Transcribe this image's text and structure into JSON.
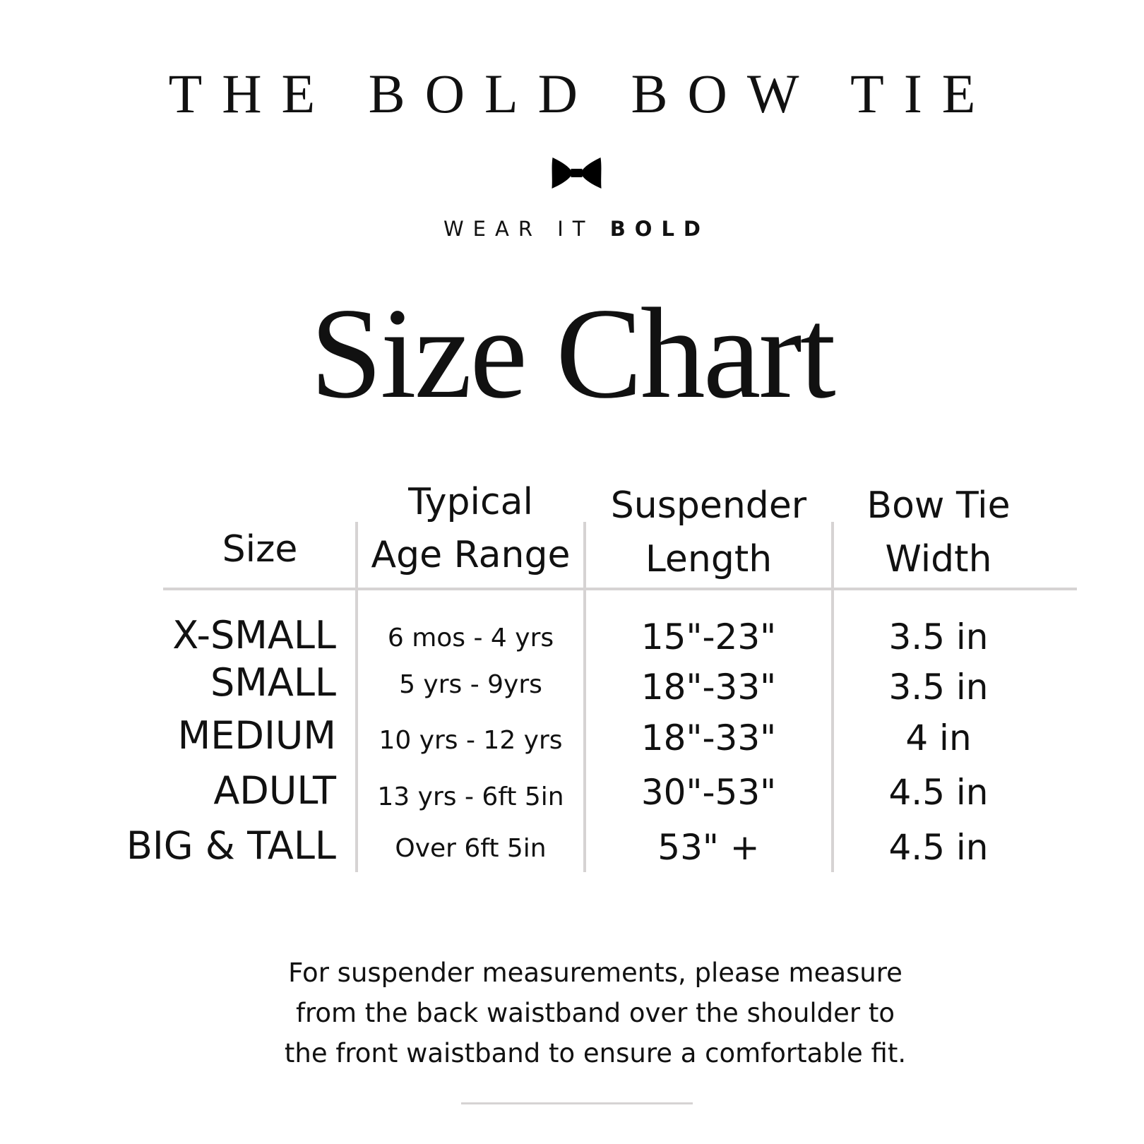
{
  "brand": {
    "name": "THE BOLD BOW TIE",
    "tagline_regular": "WEAR IT",
    "tagline_bold": "BOLD",
    "logo_icon": "bow-tie-icon"
  },
  "title": "Size Chart",
  "table": {
    "headers": [
      {
        "line1": "",
        "line2": "Size"
      },
      {
        "line1": "Typical",
        "line2": "Age Range"
      },
      {
        "line1": "Suspender",
        "line2": "Length"
      },
      {
        "line1": "Bow Tie",
        "line2": "Width"
      }
    ],
    "rows": [
      {
        "size": "X-SMALL",
        "age": "6 mos - 4 yrs",
        "suspender": "15\"-23\"",
        "bowtie": "3.5 in"
      },
      {
        "size": "SMALL",
        "age": "5 yrs - 9yrs",
        "suspender": "18\"-33\"",
        "bowtie": "3.5 in"
      },
      {
        "size": "MEDIUM",
        "age": "10 yrs - 12 yrs",
        "suspender": "18\"-33\"",
        "bowtie": "4 in"
      },
      {
        "size": "ADULT",
        "age": "13 yrs - 6ft 5in",
        "suspender": "30\"-53\"",
        "bowtie": "4.5 in"
      },
      {
        "size": "BIG & TALL",
        "age": "Over 6ft 5in",
        "suspender": "53\" +",
        "bowtie": "4.5 in"
      }
    ]
  },
  "note": {
    "lines": [
      "For suspender measurements, please measure",
      "from the back waistband over the shoulder to",
      "the front waistband to ensure a comfortable fit."
    ]
  },
  "colors": {
    "text": "#111111",
    "rules": "#d6d3d3",
    "background": "#ffffff"
  }
}
